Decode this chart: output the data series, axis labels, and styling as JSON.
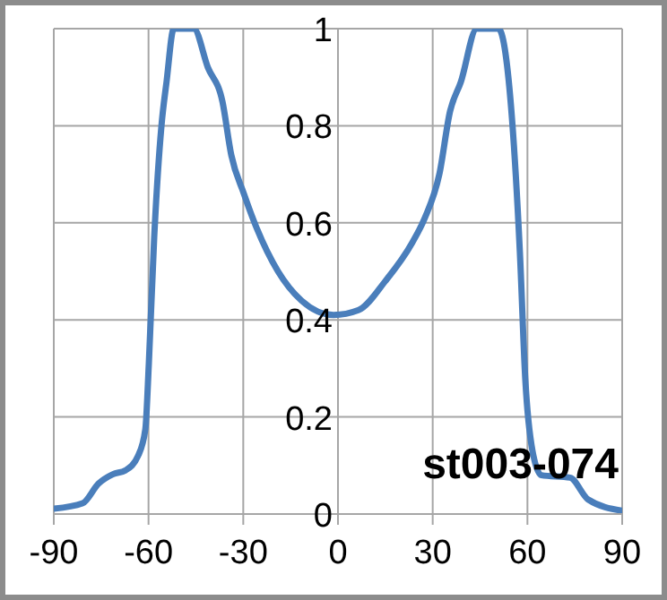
{
  "chart_data": {
    "type": "line",
    "x": [
      -90,
      -80.9,
      -75.8,
      -71.3,
      -67.3,
      -63.3,
      -61.0,
      -59.9,
      -58.2,
      -55.9,
      -54.3,
      -52.0,
      -45.7,
      -41.2,
      -36.6,
      -33.8,
      -29.8,
      -25.8,
      -19.0,
      -11.6,
      -1.4,
      6.5,
      15.0,
      23.6,
      27.5,
      32.1,
      35.5,
      38.9,
      44.0,
      50.8,
      54.8,
      57.6,
      59.3,
      61.6,
      64.4,
      73.5,
      79.2,
      90
    ],
    "values": [
      0.011,
      0.022,
      0.063,
      0.082,
      0.09,
      0.12,
      0.175,
      0.31,
      0.57,
      0.8,
      0.89,
      1.0,
      1.0,
      0.92,
      0.85,
      0.74,
      0.66,
      0.59,
      0.5,
      0.44,
      0.41,
      0.42,
      0.48,
      0.56,
      0.61,
      0.7,
      0.83,
      0.89,
      1.0,
      1.0,
      0.84,
      0.54,
      0.28,
      0.13,
      0.08,
      0.075,
      0.03,
      0.007
    ],
    "color": "#4a7ebb",
    "xlim": [
      -90,
      90
    ],
    "xticks": [
      -90,
      -60,
      -30,
      0,
      30,
      60,
      90
    ],
    "ylim": [
      0,
      1
    ],
    "yticks": [
      0,
      0.2,
      0.4,
      0.6,
      0.8,
      1
    ],
    "grid": true,
    "annotations": [
      "st003-074"
    ]
  }
}
